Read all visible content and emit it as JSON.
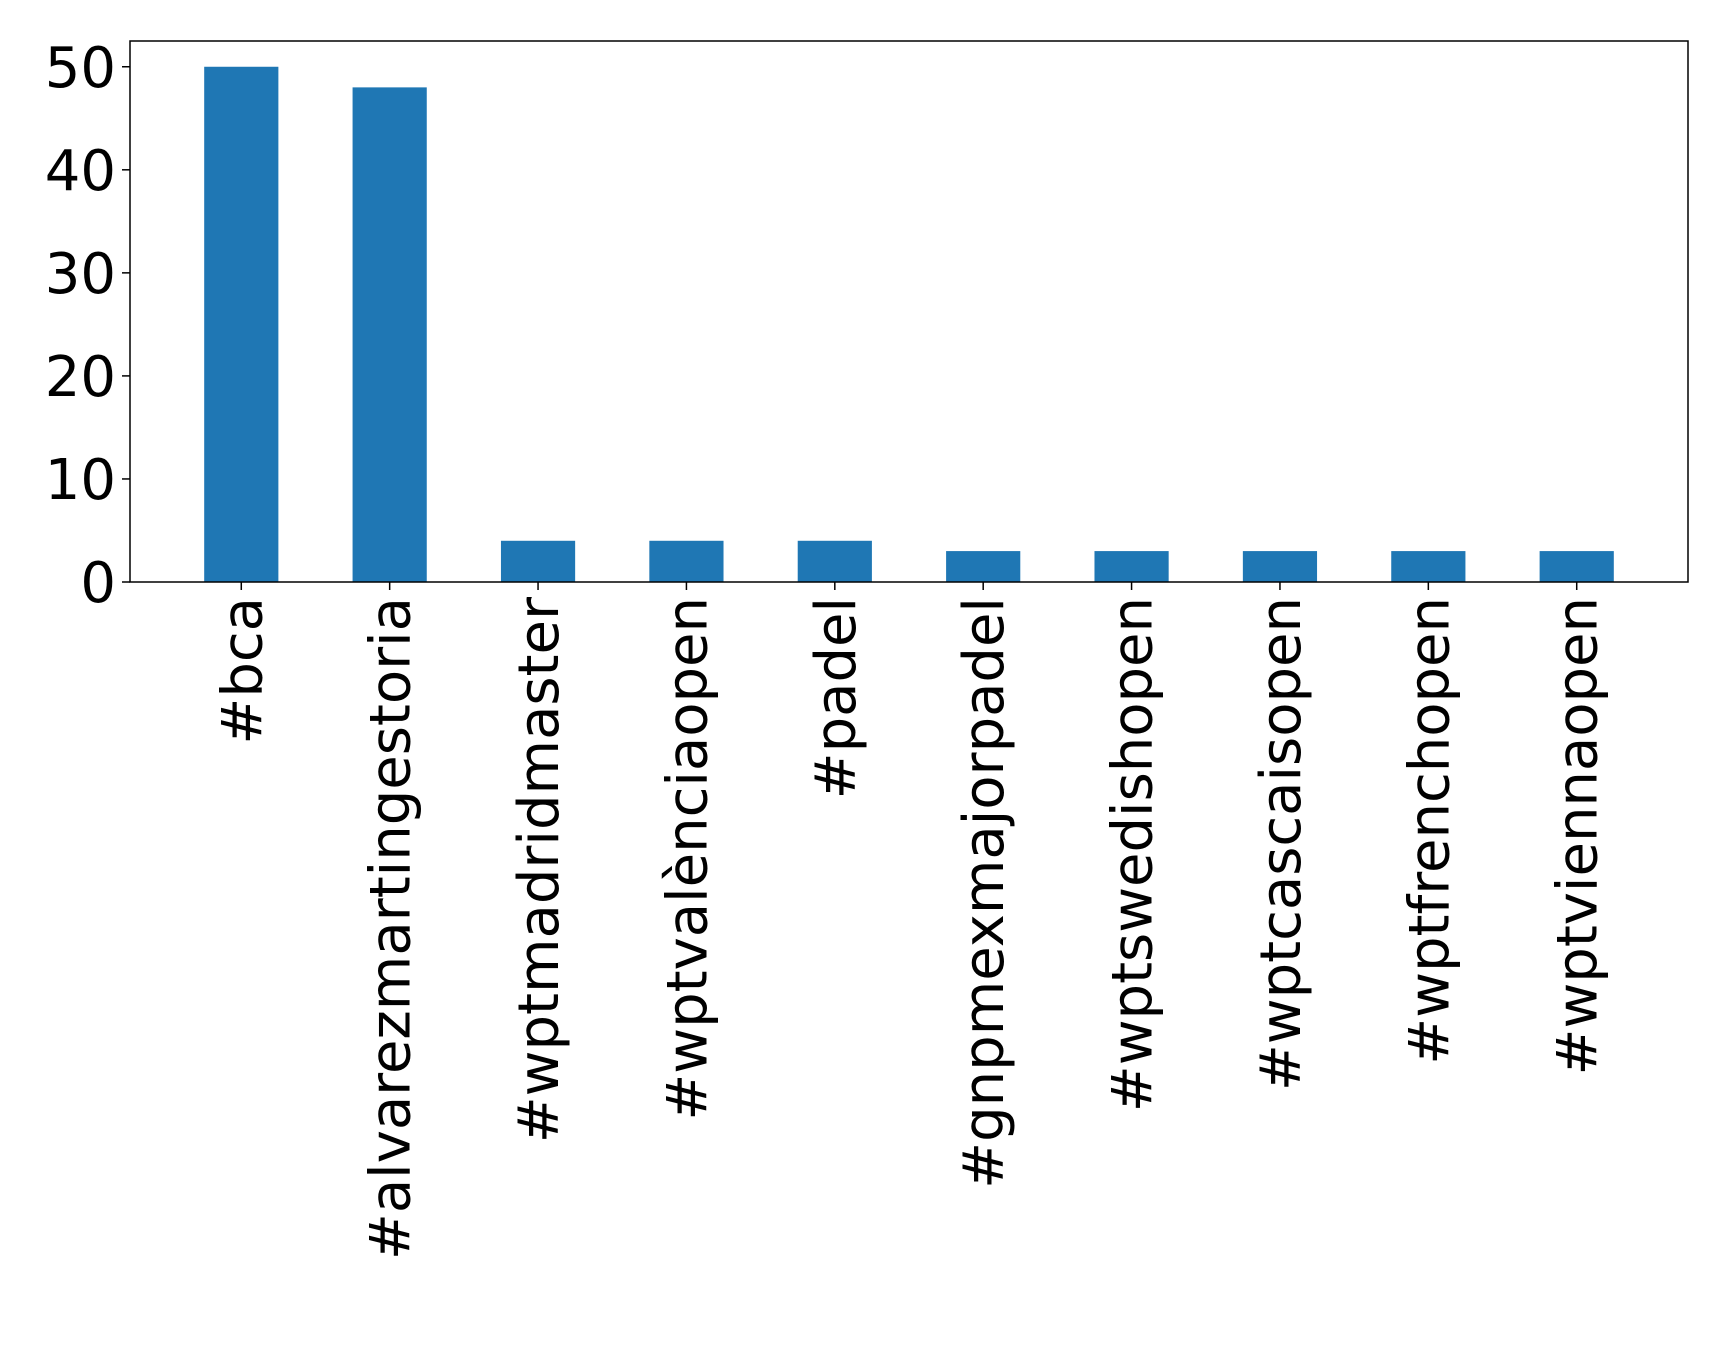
{
  "chart_data": {
    "type": "bar",
    "title": "",
    "xlabel": "",
    "ylabel": "",
    "categories": [
      "#bca",
      "#alvarezmartingestoria",
      "#wptmadridmaster",
      "#wptvalènciaopen",
      "#padel",
      "#gnpmexmajorpadel",
      "#wptswedishopen",
      "#wptcascaisopen",
      "#wptfrenchopen",
      "#wptviennaopen"
    ],
    "values": [
      50,
      48,
      4,
      4,
      4,
      3,
      3,
      3,
      3,
      3
    ],
    "ylim": [
      0,
      52.5
    ],
    "yticks": [
      0,
      10,
      20,
      30,
      40,
      50
    ],
    "grid": false,
    "legend": "none",
    "bar_color": "#1f77b4",
    "x_tick_rotation": "vertical"
  }
}
